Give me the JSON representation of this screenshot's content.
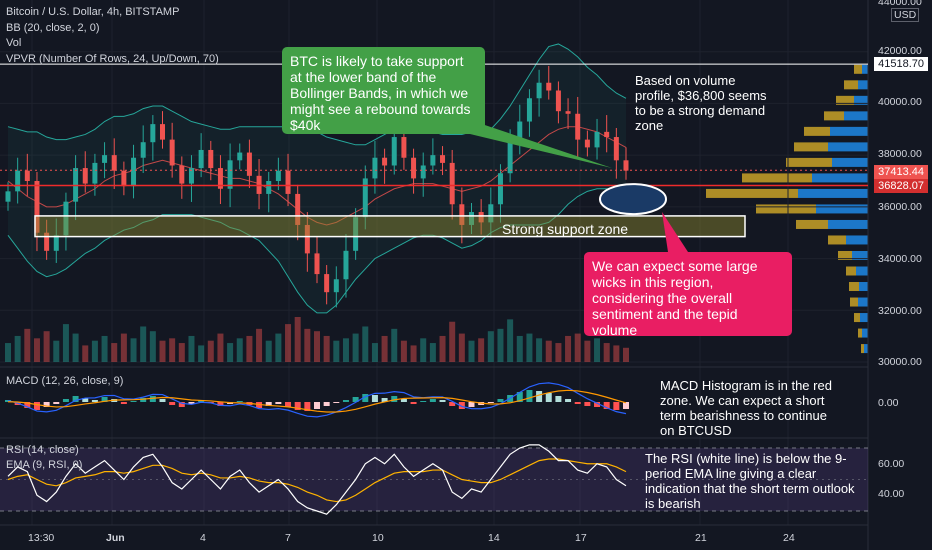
{
  "header": {
    "title": "Bitcoin / U.S. Dollar, 4h, BITSTAMP",
    "bb": "BB (20, close, 2, 0)",
    "vol": "Vol",
    "vpvr": "VPVR (Number Of Rows, 24, Up/Down, 70)"
  },
  "price_scale": {
    "currency": "USD",
    "top_label": "44000.00",
    "ticks": [
      "42000.00",
      "40000.00",
      "38000.00",
      "36000.00",
      "34000.00",
      "32000.00",
      "30000.00"
    ],
    "tags": {
      "resistance": "41518.70",
      "current": "37413.44",
      "demand": "36828.07"
    }
  },
  "macd": {
    "label": "MACD (12, 26, close, 9)",
    "zero_tick": "0.00"
  },
  "rsi": {
    "label": "RSI (14, close)",
    "ema_label": "EMA (9, RSI, 0)",
    "ticks": [
      "60.00",
      "40.00"
    ]
  },
  "time_axis": {
    "ticks": [
      "13:30",
      "Jun",
      "4",
      "7",
      "10",
      "14",
      "17",
      "21",
      "24"
    ]
  },
  "annotations": {
    "green_bubble": "BTC is likely to take support at the lower band of the Bollinger Bands, in which we might see a rebound towards $40k",
    "volume_note": "Based on volume profile, $36,800 seems to be a strong demand zone",
    "support_zone": "Strong support zone",
    "pink_bubble": "We can expect some large wicks in this region, considering the overall sentiment and the tepid volume",
    "macd_note": "MACD Histogram is in the red zone. We can expect a short term bearishness to continue on BTCUSD",
    "rsi_note": "The RSI (white line) is below the 9-period EMA line giving a clear indication that the short term outlook is bearish"
  },
  "colors": {
    "bull": "#26a69a",
    "bear": "#ef5350",
    "green_bubble": "#43a047",
    "pink_bubble": "#e91e63",
    "vpvr_up": "#1e88e5",
    "vpvr_down": "#c9a227",
    "resistance_tag": "#ffffff",
    "current_tag": "#ef5350",
    "demand_tag": "#d32f2f"
  },
  "chart_data": {
    "type": "candlestick",
    "symbol": "BTCUSD",
    "timeframe": "4h",
    "ylim": [
      30000,
      44000
    ],
    "levels": {
      "resistance": 41518.7,
      "current": 37413.44,
      "demand": 36828.07
    },
    "support_zone": [
      34850,
      35650
    ],
    "demand_marker": 36300,
    "close": [
      36600,
      37400,
      37000,
      35000,
      34300,
      34900,
      36200,
      37500,
      36900,
      37700,
      38000,
      37400,
      36800,
      37900,
      38500,
      39200,
      38600,
      37600,
      36900,
      37500,
      38200,
      37500,
      36700,
      37800,
      38100,
      37200,
      36500,
      37000,
      37400,
      36500,
      35300,
      34200,
      33400,
      32700,
      33200,
      34300,
      35600,
      37100,
      37900,
      37600,
      38700,
      37900,
      37100,
      37600,
      38000,
      37700,
      36100,
      35300,
      35800,
      35400,
      36100,
      37300,
      38500,
      39300,
      40200,
      40800,
      40500,
      39700,
      39600,
      38600,
      38300,
      38900,
      38700,
      37800,
      37400
    ],
    "bb_mid": [
      37000,
      36700,
      36400,
      36200,
      36000,
      36000,
      36100,
      36300,
      36500,
      36700,
      37000,
      37200,
      37300,
      37400,
      37600,
      37700,
      37800,
      37700,
      37600,
      37500,
      37400,
      37300,
      37200,
      37100,
      37100,
      37000,
      36900,
      36700,
      36500,
      36200,
      35900,
      35600,
      35400,
      35300,
      35400,
      35600,
      35800,
      36000,
      36300,
      36500,
      36700,
      36800,
      36900,
      36900,
      36900,
      36800,
      36700,
      36600,
      36700,
      36800,
      37000,
      37300,
      37600,
      37900,
      38200,
      38500,
      38800,
      39000,
      39100,
      39100,
      39000,
      38900,
      38700,
      38500,
      38300
    ],
    "bb_width": [
      2100,
      2300,
      2500,
      2700,
      2700,
      2600,
      2500,
      2400,
      2300,
      2300,
      2300,
      2300,
      2200,
      2200,
      2200,
      2200,
      2100,
      2000,
      1900,
      1800,
      1800,
      1800,
      1800,
      1900,
      2000,
      2100,
      2200,
      2400,
      2600,
      2900,
      3200,
      3400,
      3500,
      3400,
      3200,
      2900,
      2600,
      2400,
      2300,
      2300,
      2300,
      2200,
      2100,
      2000,
      2000,
      2000,
      2100,
      2200,
      2200,
      2100,
      2000,
      2100,
      2300,
      2600,
      2900,
      3200,
      3400,
      3300,
      3000,
      2700,
      2400,
      2200,
      2000,
      1900,
      1900
    ],
    "volume": [
      40,
      55,
      70,
      50,
      65,
      45,
      80,
      60,
      35,
      45,
      55,
      40,
      60,
      50,
      75,
      65,
      45,
      50,
      40,
      55,
      35,
      45,
      60,
      40,
      50,
      55,
      70,
      45,
      60,
      80,
      95,
      70,
      65,
      55,
      45,
      50,
      60,
      75,
      40,
      55,
      70,
      45,
      35,
      50,
      40,
      55,
      85,
      60,
      45,
      50,
      65,
      70,
      90,
      55,
      60,
      50,
      45,
      40,
      55,
      60,
      45,
      50,
      40,
      35,
      30
    ],
    "macd_hist": [
      2,
      -3,
      -6,
      -8,
      -5,
      -2,
      3,
      6,
      4,
      2,
      5,
      3,
      -2,
      1,
      4,
      6,
      3,
      -3,
      -5,
      -2,
      2,
      -1,
      -4,
      -2,
      1,
      -3,
      -6,
      -4,
      -2,
      -5,
      -8,
      -9,
      -7,
      -4,
      -1,
      2,
      5,
      8,
      7,
      4,
      6,
      3,
      -2,
      1,
      3,
      2,
      -4,
      -7,
      -5,
      -3,
      -1,
      3,
      7,
      10,
      12,
      11,
      9,
      6,
      3,
      -2,
      -4,
      -5,
      -7,
      -8,
      -7
    ],
    "rsi": [
      52,
      58,
      55,
      40,
      36,
      42,
      52,
      60,
      54,
      58,
      62,
      56,
      50,
      58,
      64,
      66,
      58,
      48,
      44,
      50,
      56,
      50,
      44,
      52,
      56,
      48,
      42,
      46,
      50,
      44,
      36,
      32,
      30,
      28,
      34,
      42,
      50,
      60,
      64,
      60,
      66,
      58,
      52,
      56,
      60,
      56,
      42,
      38,
      44,
      42,
      50,
      58,
      66,
      70,
      72,
      72,
      68,
      62,
      62,
      56,
      54,
      60,
      58,
      50,
      46
    ],
    "rsi_ema": [
      50,
      52,
      53,
      50,
      47,
      46,
      48,
      51,
      52,
      53,
      55,
      55,
      54,
      55,
      57,
      59,
      59,
      57,
      54,
      53,
      54,
      53,
      51,
      51,
      52,
      51,
      49,
      48,
      48,
      47,
      45,
      42,
      40,
      37,
      36,
      37,
      40,
      44,
      48,
      51,
      54,
      55,
      55,
      55,
      56,
      56,
      53,
      50,
      49,
      48,
      48,
      50,
      53,
      56,
      59,
      62,
      63,
      63,
      62,
      61,
      60,
      60,
      60,
      58,
      55
    ],
    "vpvr_rows": [
      {
        "price": 30500,
        "up": 4,
        "down": 3
      },
      {
        "price": 31100,
        "up": 6,
        "down": 4
      },
      {
        "price": 31700,
        "up": 8,
        "down": 6
      },
      {
        "price": 32300,
        "up": 10,
        "down": 8
      },
      {
        "price": 32900,
        "up": 9,
        "down": 10
      },
      {
        "price": 33500,
        "up": 12,
        "down": 10
      },
      {
        "price": 34100,
        "up": 16,
        "down": 14
      },
      {
        "price": 34700,
        "up": 22,
        "down": 18
      },
      {
        "price": 35300,
        "up": 40,
        "down": 32
      },
      {
        "price": 35900,
        "up": 52,
        "down": 60
      },
      {
        "price": 36500,
        "up": 70,
        "down": 92
      },
      {
        "price": 37100,
        "up": 56,
        "down": 70
      },
      {
        "price": 37700,
        "up": 36,
        "down": 46
      },
      {
        "price": 38300,
        "up": 40,
        "down": 34
      },
      {
        "price": 38900,
        "up": 38,
        "down": 26
      },
      {
        "price": 39500,
        "up": 24,
        "down": 20
      },
      {
        "price": 40100,
        "up": 14,
        "down": 18
      },
      {
        "price": 40700,
        "up": 10,
        "down": 14
      },
      {
        "price": 41300,
        "up": 6,
        "down": 8
      }
    ]
  }
}
